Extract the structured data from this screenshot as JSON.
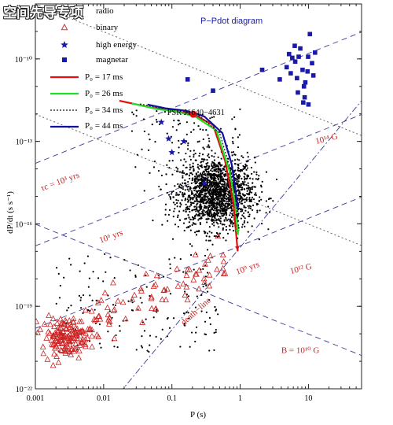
{
  "watermark": "空间先导专项",
  "chart_data": {
    "type": "scatter",
    "title": "P−Pdot diagram",
    "xlabel": "P (s)",
    "ylabel": "dP/dt (s s⁻¹)",
    "xscale": "log",
    "yscale": "log",
    "xlim": [
      0.001,
      60
    ],
    "ylim": [
      1e-22,
      1e-08
    ],
    "x_tick_labels": [
      "0.001",
      "0.01",
      "0.1",
      "1",
      "10"
    ],
    "y_tick_labels": [
      "10⁻¹⁰",
      "10⁻¹³",
      "10⁻¹⁶",
      "10⁻¹⁹",
      "10⁻²²"
    ],
    "legend_position": "top-left",
    "legend": {
      "radio": "radio",
      "binary": "binary",
      "high_energy": "high energy",
      "magnetar": "magnetar",
      "p0_17": "P₀ = 17 ms",
      "p0_26": "P₀ = 26 ms",
      "p0_34": "P₀ = 34 ms",
      "p0_44": "P₀ = 44 ms"
    },
    "colors": {
      "radio": "#000000",
      "binary": "#cc2222",
      "high_energy": "#1a1aa8",
      "magnetar": "#1a1aa8",
      "track_17": "#e01010",
      "track_26": "#22dd22",
      "track_34": "#111111",
      "track_44": "#1010a0",
      "age_lines": "#3a3a9a",
      "field_lines": "#555555",
      "annotation": "#cc2222"
    },
    "annotations": {
      "source": "PSR J1640−4631",
      "age_1e3": "τc = 10³ yrs",
      "age_1e6": "10⁶ yrs",
      "age_1e9": "10⁹ yrs",
      "b_1e14": "10¹⁴ G",
      "b_1e12": "10¹² G",
      "b_1e10": "B = 10¹⁰ G",
      "death_line": "death−line"
    },
    "source_point": {
      "P": 0.206,
      "Pdot": 9.7e-13
    },
    "magnetars": [
      [
        7.2,
        1.2e-10
      ],
      [
        10.5,
        8e-10
      ],
      [
        5.5,
        3e-11
      ],
      [
        8.2,
        4e-11
      ],
      [
        11.8,
        2.5e-11
      ],
      [
        6.4,
        8e-11
      ],
      [
        4.8,
        5e-11
      ],
      [
        9.0,
        1.4e-11
      ],
      [
        8.8,
        4e-12
      ],
      [
        12.5,
        1.7e-10
      ],
      [
        2.1,
        4e-11
      ],
      [
        5.2,
        1.5e-10
      ],
      [
        7.6,
        2.4e-10
      ],
      [
        11.3,
        7e-11
      ],
      [
        6.8,
        2e-11
      ],
      [
        9.7,
        3.5e-11
      ],
      [
        3.8,
        1.8e-11
      ],
      [
        8.6,
        1e-11
      ],
      [
        10.0,
        2.2e-12
      ],
      [
        7.0,
        6e-12
      ],
      [
        0.17,
        1.8e-11
      ],
      [
        0.4,
        7e-12
      ],
      [
        5.8,
        1.1e-10
      ],
      [
        6.3,
        3e-10
      ],
      [
        8.4,
        2.6e-12
      ],
      [
        9.9,
        1.2e-10
      ]
    ],
    "high_energy_points": [
      [
        0.07,
        5e-13
      ],
      [
        0.0894,
        1.25e-13
      ],
      [
        0.1,
        4e-14
      ],
      [
        0.15,
        1e-13
      ],
      [
        0.3,
        3e-15
      ]
    ],
    "binary_points_note": "approx. 220 open-triangle points, P 0.0015–0.6 s, Pdot 1e-21–1e-17",
    "radio_points_note": "approx. 1900 dots concentrated at P 0.3–1 s, Pdot 1e-16–1e-14",
    "tracks": [
      {
        "label_key": "p0_17",
        "points": [
          [
            0.017,
            3e-12
          ],
          [
            0.05,
            1.7e-12
          ],
          [
            0.1,
            1.3e-12
          ],
          [
            0.2,
            1e-12
          ],
          [
            0.4,
            4e-13
          ],
          [
            0.6,
            2e-14
          ],
          [
            0.8,
            5e-16
          ],
          [
            0.92,
            1e-17
          ]
        ]
      },
      {
        "label_key": "p0_26",
        "points": [
          [
            0.026,
            2.4e-12
          ],
          [
            0.06,
            1.5e-12
          ],
          [
            0.12,
            1.2e-12
          ],
          [
            0.22,
            8e-13
          ],
          [
            0.45,
            2.5e-13
          ],
          [
            0.7,
            8e-15
          ],
          [
            0.85,
            5e-16
          ],
          [
            0.93,
            4e-17
          ]
        ]
      },
      {
        "label_key": "p0_34",
        "points": [
          [
            0.034,
            2.3e-12
          ],
          [
            0.07,
            1.6e-12
          ],
          [
            0.14,
            1.3e-12
          ],
          [
            0.26,
            8e-13
          ],
          [
            0.5,
            2e-13
          ],
          [
            0.72,
            1e-14
          ],
          [
            0.86,
            8e-16
          ],
          [
            0.92,
            1.5e-16
          ]
        ]
      },
      {
        "label_key": "p0_44",
        "points": [
          [
            0.044,
            2.2e-12
          ],
          [
            0.08,
            1.6e-12
          ],
          [
            0.16,
            1.3e-12
          ],
          [
            0.3,
            8e-13
          ],
          [
            0.55,
            2e-13
          ],
          [
            0.75,
            1.5e-14
          ],
          [
            0.88,
            1e-15
          ],
          [
            0.93,
            3.5e-16
          ]
        ]
      }
    ]
  }
}
